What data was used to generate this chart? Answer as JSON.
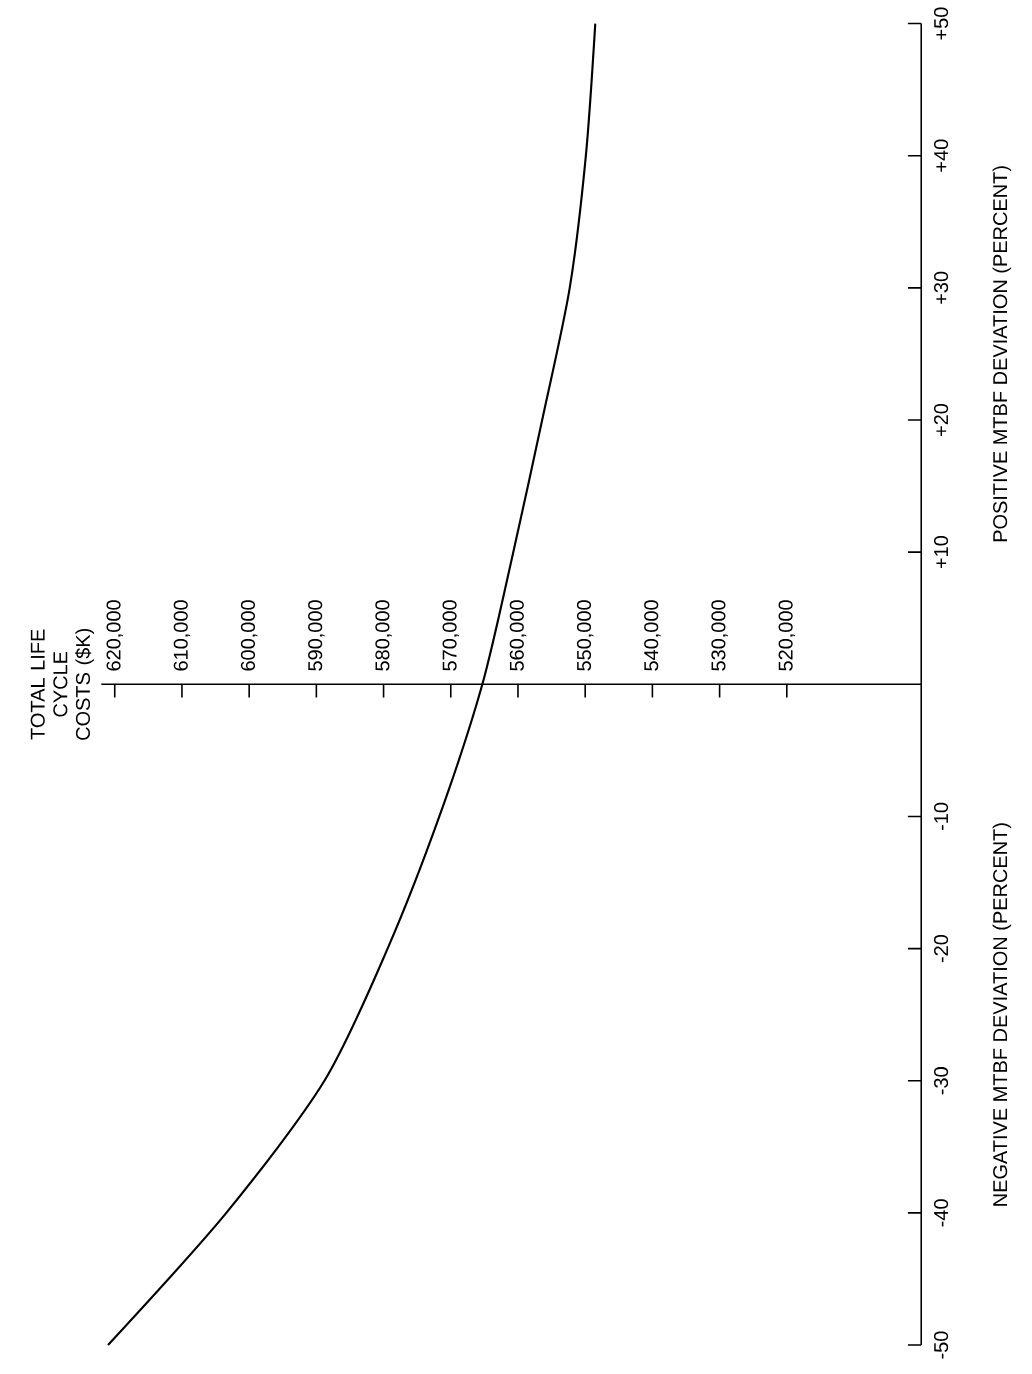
{
  "chart_data": {
    "type": "line",
    "ylabel": "POSITIVE MTBF DEVIATION (PERCENT)",
    "annotations": [
      "NEGATIVE MTBF DEVIATION (PERCENT)",
      "TOTAL LIFE CYCLE COSTS ($K)"
    ],
    "x": [
      621000,
      603400,
      588800,
      579400,
      571700,
      565300,
      560700,
      556400,
      552300,
      549900,
      548500
    ],
    "series": [
      {
        "color": "#000000",
        "values": [
          -50,
          -40,
          -30,
          -20,
          -10,
          0,
          10,
          20,
          30,
          40,
          50
        ]
      }
    ],
    "xlim": [
      622000,
      500000
    ],
    "xticks": [
      {
        "value": 620000,
        "label": "620,000"
      },
      {
        "value": 610000,
        "label": "610,000"
      },
      {
        "value": 600000,
        "label": "600,000"
      },
      {
        "value": 590000,
        "label": "590,000"
      },
      {
        "value": 580000,
        "label": "580,000"
      },
      {
        "value": 570000,
        "label": "570,000"
      },
      {
        "value": 560000,
        "label": "560,000"
      },
      {
        "value": 550000,
        "label": "550,000"
      },
      {
        "value": 540000,
        "label": "540,000"
      },
      {
        "value": 530000,
        "label": "530,000"
      },
      {
        "value": 520000,
        "label": "520,000"
      }
    ],
    "ylim": [
      -50,
      50
    ],
    "yticks": [
      {
        "value": -50,
        "label": "-50"
      },
      {
        "value": -40,
        "label": "-40"
      },
      {
        "value": -30,
        "label": "-30"
      },
      {
        "value": -20,
        "label": "-20"
      },
      {
        "value": -10,
        "label": "-10"
      },
      {
        "value": 10,
        "label": "+10"
      },
      {
        "value": 20,
        "label": "+20"
      },
      {
        "value": 30,
        "label": "+30"
      },
      {
        "value": 40,
        "label": "+40"
      },
      {
        "value": 50,
        "label": "+50"
      }
    ],
    "grid": false,
    "marker": "none",
    "line_style": "solid"
  }
}
